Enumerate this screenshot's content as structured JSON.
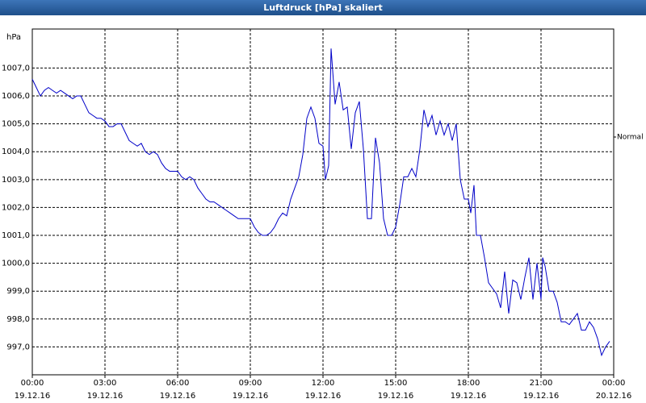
{
  "chart_data": {
    "type": "line",
    "title": "Luftdruck [hPa] skaliert",
    "y_label": "hPa",
    "x": [
      0,
      10,
      20,
      30,
      40,
      50,
      60,
      70,
      80,
      90,
      100,
      110,
      120,
      130,
      140,
      150,
      160,
      170,
      180,
      190,
      200,
      210,
      220,
      230,
      240,
      250,
      260,
      270,
      280,
      290,
      300,
      310,
      320,
      330,
      340,
      350,
      360,
      370,
      380,
      390,
      400,
      410,
      420,
      430,
      440,
      450,
      460,
      470,
      480,
      490,
      500,
      510,
      520,
      530,
      540,
      550,
      560,
      570,
      580,
      590,
      600,
      610,
      620,
      630,
      640,
      650,
      660,
      670,
      680,
      690,
      700,
      710,
      720,
      726,
      734,
      740,
      750,
      760,
      770,
      780,
      790,
      800,
      810,
      820,
      830,
      840,
      850,
      860,
      870,
      880,
      890,
      900,
      910,
      920,
      930,
      940,
      950,
      960,
      970,
      980,
      990,
      1000,
      1010,
      1020,
      1030,
      1040,
      1050,
      1060,
      1070,
      1080,
      1086,
      1094,
      1100,
      1110,
      1120,
      1130,
      1140,
      1150,
      1160,
      1170,
      1180,
      1190,
      1200,
      1210,
      1220,
      1230,
      1240,
      1250,
      1260,
      1264,
      1270,
      1280,
      1290,
      1300,
      1310,
      1320,
      1330,
      1340,
      1350,
      1360,
      1370,
      1380,
      1390,
      1400,
      1410,
      1420,
      1430
    ],
    "series": [
      {
        "name": "Normal",
        "color": "#0000c8",
        "values": [
          1006.6,
          1006.3,
          1006.0,
          1006.2,
          1006.3,
          1006.2,
          1006.1,
          1006.2,
          1006.1,
          1006.0,
          1005.9,
          1006.0,
          1006.0,
          1005.7,
          1005.4,
          1005.3,
          1005.2,
          1005.2,
          1005.1,
          1004.9,
          1004.9,
          1005.0,
          1005.0,
          1004.7,
          1004.4,
          1004.3,
          1004.2,
          1004.3,
          1004.0,
          1003.9,
          1004.0,
          1003.9,
          1003.6,
          1003.4,
          1003.3,
          1003.3,
          1003.3,
          1003.1,
          1003.0,
          1003.1,
          1003.0,
          1002.7,
          1002.5,
          1002.3,
          1002.2,
          1002.2,
          1002.1,
          1002.0,
          1001.9,
          1001.8,
          1001.7,
          1001.6,
          1001.6,
          1001.6,
          1001.6,
          1001.3,
          1001.1,
          1001.0,
          1001.0,
          1001.1,
          1001.3,
          1001.6,
          1001.8,
          1001.7,
          1002.3,
          1002.7,
          1003.1,
          1003.9,
          1005.2,
          1005.6,
          1005.2,
          1004.3,
          1004.2,
          1003.0,
          1003.5,
          1007.7,
          1005.7,
          1006.5,
          1005.5,
          1005.6,
          1004.1,
          1005.4,
          1005.8,
          1004.1,
          1001.6,
          1001.6,
          1004.5,
          1003.6,
          1001.6,
          1001.0,
          1001.0,
          1001.3,
          1002.1,
          1003.1,
          1003.1,
          1003.4,
          1003.1,
          1004.1,
          1005.5,
          1004.9,
          1005.3,
          1004.6,
          1005.1,
          1004.6,
          1005.0,
          1004.4,
          1005.0,
          1003.0,
          1002.3,
          1002.3,
          1001.8,
          1002.8,
          1001.0,
          1001.0,
          1000.2,
          999.3,
          999.1,
          998.9,
          998.4,
          999.7,
          998.2,
          999.4,
          999.3,
          998.7,
          999.5,
          1000.2,
          998.7,
          1000.0,
          998.7,
          1000.2,
          999.9,
          999.0,
          999.0,
          998.6,
          997.9,
          997.9,
          997.8,
          998.0,
          998.2,
          997.6,
          997.6,
          997.9,
          997.7,
          997.3,
          996.7,
          997.0,
          997.2
        ]
      }
    ],
    "xlim": [
      0,
      1440
    ],
    "xticks": [
      {
        "value": 0,
        "label": "00:00"
      },
      {
        "value": 180,
        "label": "03:00"
      },
      {
        "value": 360,
        "label": "06:00"
      },
      {
        "value": 540,
        "label": "09:00"
      },
      {
        "value": 720,
        "label": "12:00"
      },
      {
        "value": 900,
        "label": "15:00"
      },
      {
        "value": 1080,
        "label": "18:00"
      },
      {
        "value": 1260,
        "label": "21:00"
      },
      {
        "value": 1440,
        "label": "00:00"
      }
    ],
    "xtick_dates": [
      "19.12.16",
      "19.12.16",
      "19.12.16",
      "19.12.16",
      "19.12.16",
      "19.12.16",
      "19.12.16",
      "19.12.16",
      "20.12.16"
    ],
    "ylim": [
      996.0,
      1008.4
    ],
    "yticks": [
      {
        "value": 997,
        "label": "997,0"
      },
      {
        "value": 998,
        "label": "998,0"
      },
      {
        "value": 999,
        "label": "999,0"
      },
      {
        "value": 1000,
        "label": "1000,0"
      },
      {
        "value": 1001,
        "label": "1001,0"
      },
      {
        "value": 1002,
        "label": "1002,0"
      },
      {
        "value": 1003,
        "label": "1003,0"
      },
      {
        "value": 1004,
        "label": "1004,0"
      },
      {
        "value": 1005,
        "label": "1005,0"
      },
      {
        "value": 1006,
        "label": "1006,0"
      },
      {
        "value": 1007,
        "label": "1007,0"
      }
    ],
    "grid": true
  }
}
